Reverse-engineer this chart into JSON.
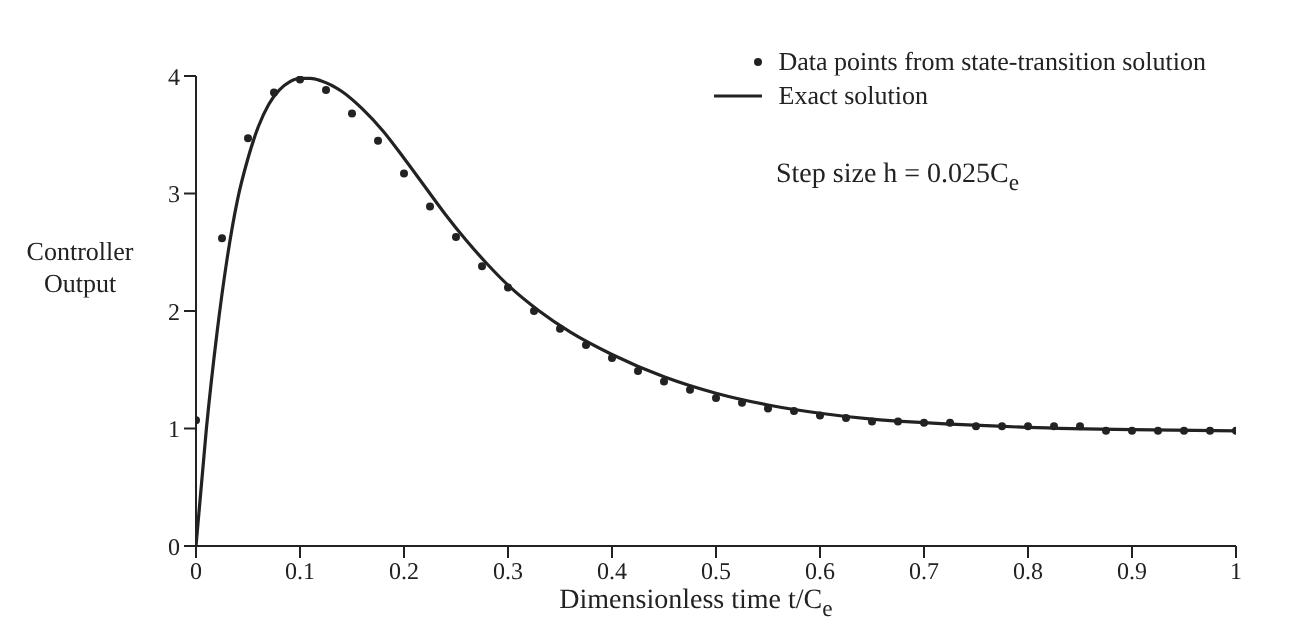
{
  "chart_data": {
    "type": "scatter",
    "xlabel": "Dimensionless time t/C$_{e}$",
    "ylabel": "Controller Output",
    "annotations": [
      "Step size h = 0.025C$_{e}$"
    ],
    "xlim": [
      0,
      1
    ],
    "xticks": [
      0,
      0.1,
      0.2,
      0.3,
      0.4,
      0.5,
      0.6,
      0.7,
      0.8,
      0.9,
      1
    ],
    "ylim": [
      0,
      4
    ],
    "yticks": [
      0,
      1,
      2,
      3,
      4
    ],
    "grid": false,
    "legend": "top right",
    "series": [
      {
        "name": "Data points from state-transition solution",
        "marker": "circle",
        "color": "#222222",
        "x": [
          0,
          0.025,
          0.05,
          0.075,
          0.1,
          0.125,
          0.15,
          0.175,
          0.2,
          0.225,
          0.25,
          0.275,
          0.3,
          0.325,
          0.35,
          0.375,
          0.4,
          0.425,
          0.45,
          0.475,
          0.5,
          0.525,
          0.55,
          0.575,
          0.6,
          0.625,
          0.65,
          0.675,
          0.7,
          0.725,
          0.75,
          0.775,
          0.8,
          0.825,
          0.85,
          0.875,
          0.9,
          0.925,
          0.95,
          0.975,
          1
        ],
        "values": [
          1.07,
          2.62,
          3.47,
          3.86,
          3.97,
          3.88,
          3.68,
          3.45,
          3.17,
          2.89,
          2.63,
          2.38,
          2.2,
          2.0,
          1.85,
          1.71,
          1.6,
          1.49,
          1.4,
          1.33,
          1.26,
          1.22,
          1.17,
          1.15,
          1.11,
          1.09,
          1.06,
          1.06,
          1.05,
          1.05,
          1.02,
          1.02,
          1.02,
          1.02,
          1.02,
          0.98,
          0.98,
          0.98,
          0.98,
          0.98,
          0.98
        ]
      },
      {
        "name": "Exact solution",
        "type": "line",
        "marker": "none",
        "line_style": "solid",
        "color": "#222222",
        "x": [
          0,
          0.01,
          0.02,
          0.03,
          0.04,
          0.05,
          0.06,
          0.07,
          0.08,
          0.09,
          0.1,
          0.11,
          0.12,
          0.14,
          0.16,
          0.18,
          0.2,
          0.22,
          0.24,
          0.26,
          0.28,
          0.3,
          0.33,
          0.36,
          0.4,
          0.45,
          0.5,
          0.55,
          0.6,
          0.65,
          0.7,
          0.8,
          0.9,
          1
        ],
        "values": [
          0,
          1.0,
          1.8,
          2.45,
          2.95,
          3.3,
          3.57,
          3.76,
          3.88,
          3.95,
          3.98,
          3.98,
          3.96,
          3.87,
          3.72,
          3.53,
          3.3,
          3.06,
          2.82,
          2.6,
          2.4,
          2.22,
          2.0,
          1.82,
          1.63,
          1.44,
          1.3,
          1.2,
          1.13,
          1.08,
          1.05,
          1.01,
          0.99,
          0.98
        ]
      }
    ]
  }
}
